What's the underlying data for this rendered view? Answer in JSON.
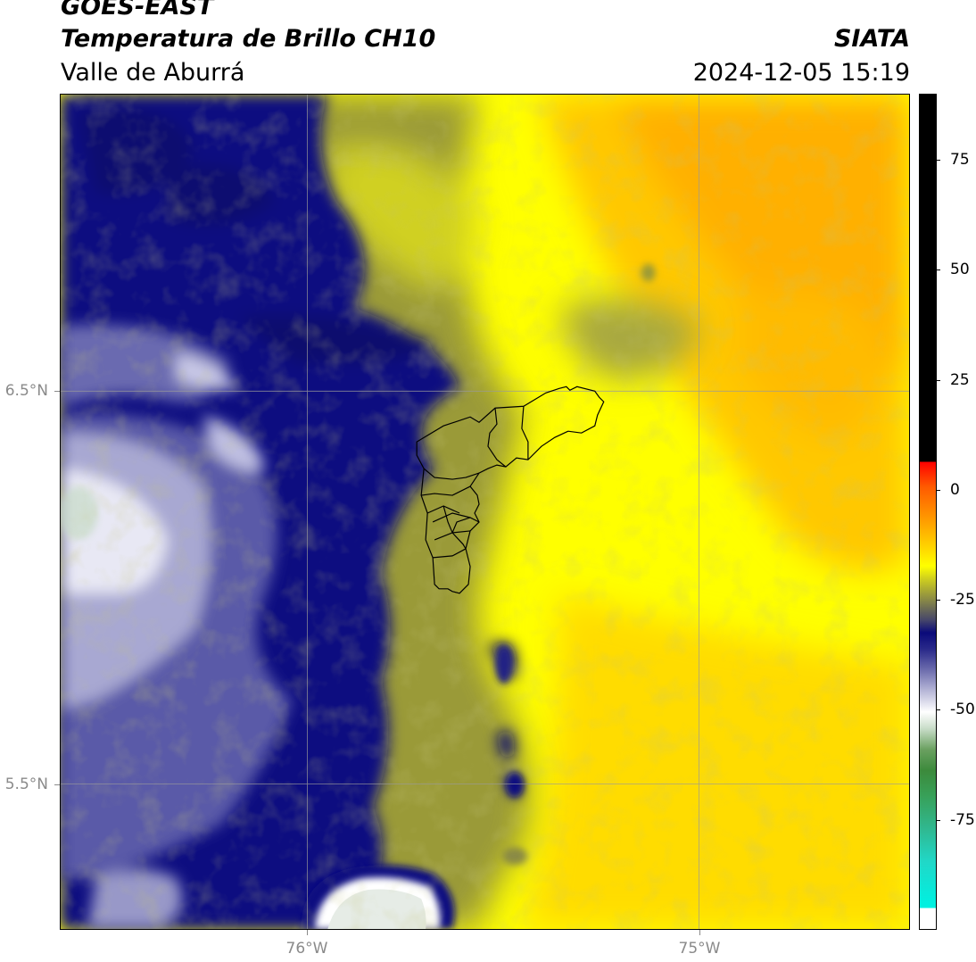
{
  "header": {
    "satellite": "GOES-EAST",
    "product": "Temperatura de Brillo CH10",
    "region": "Valle de Aburrá",
    "agency": "SIATA",
    "timestamp": "2024-12-05 15:19"
  },
  "map": {
    "lat_labels": [
      {
        "text": "6.5°N",
        "value": 6.5
      },
      {
        "text": "5.5°N",
        "value": 5.5
      }
    ],
    "lon_labels": [
      {
        "text": "76°W",
        "value": -76
      },
      {
        "text": "75°W",
        "value": -75
      }
    ],
    "grid": true
  },
  "colorbar": {
    "labels": [
      "75",
      "50",
      "25",
      "0",
      "-25",
      "-50",
      "-75"
    ],
    "values": [
      75,
      50,
      25,
      0,
      -25,
      -50,
      -75
    ],
    "range": [
      -100,
      90
    ]
  },
  "colors": {
    "cold_white": "#ffffff",
    "deep_blue": "#0a0a7a",
    "olive": "#8a8a45",
    "yellow": "#ffff00",
    "orange": "#ffb400",
    "border": "#000000"
  }
}
